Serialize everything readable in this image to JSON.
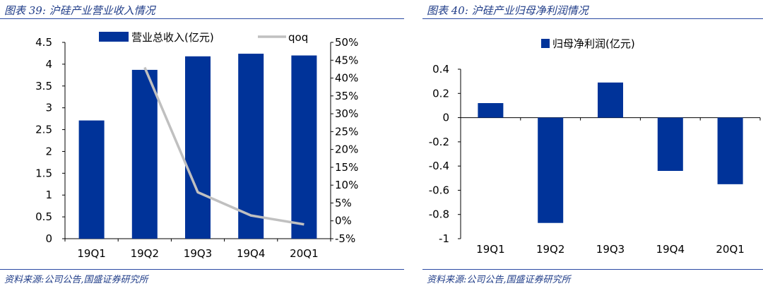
{
  "left": {
    "title": "图表 39:  沪硅产业营业收入情况",
    "source": "资料来源:公司公告,国盛证券研究所"
  },
  "right": {
    "title": "图表 40:  沪硅产业归母净利润情况",
    "source": "资料来源:公司公告,国盛证券研究所"
  },
  "colors": {
    "bar": "#003399",
    "line": "#c0c0c0",
    "accent": "#1f3c88"
  },
  "chart_data": [
    {
      "type": "bar",
      "title": "沪硅产业营业收入情况",
      "categories": [
        "19Q1",
        "19Q2",
        "19Q3",
        "19Q4",
        "20Q1"
      ],
      "series": [
        {
          "name": "营业总收入(亿元)",
          "type": "bar",
          "axis": "left",
          "values": [
            2.71,
            3.87,
            4.18,
            4.24,
            4.2
          ]
        },
        {
          "name": "qoq",
          "type": "line",
          "axis": "right",
          "values": [
            null,
            0.43,
            0.08,
            0.015,
            -0.01
          ]
        }
      ],
      "y_left": {
        "min": 0,
        "max": 4.5,
        "step": 0.5,
        "ticks": [
          "0",
          "0.5",
          "1",
          "1.5",
          "2",
          "2.5",
          "3",
          "3.5",
          "4",
          "4.5"
        ]
      },
      "y_right": {
        "min": -0.05,
        "max": 0.5,
        "step": 0.05,
        "ticks": [
          "-5%",
          "0%",
          "5%",
          "10%",
          "15%",
          "20%",
          "25%",
          "30%",
          "35%",
          "40%",
          "45%",
          "50%"
        ]
      },
      "legend": "top",
      "grid": false
    },
    {
      "type": "bar",
      "title": "沪硅产业归母净利润情况",
      "categories": [
        "19Q1",
        "19Q2",
        "19Q3",
        "19Q4",
        "20Q1"
      ],
      "series": [
        {
          "name": "归母净利润(亿元)",
          "values": [
            0.12,
            -0.87,
            0.29,
            -0.44,
            -0.55
          ]
        }
      ],
      "ylim": [
        -1,
        0.4
      ],
      "y_ticks": [
        "-1",
        "-0.8",
        "-0.6",
        "-0.4",
        "-0.2",
        "0",
        "0.2",
        "0.4"
      ],
      "legend": "top",
      "grid": false
    }
  ]
}
